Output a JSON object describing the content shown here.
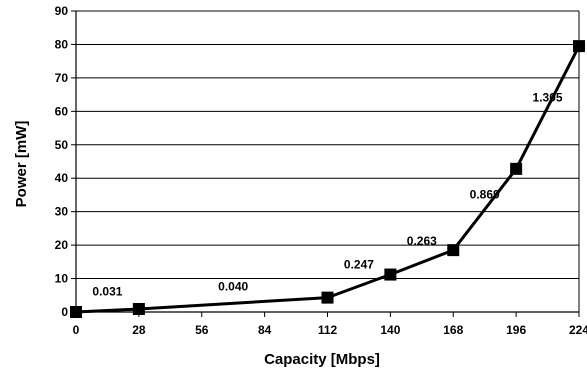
{
  "chart_data": {
    "type": "line",
    "xlabel": "Capacity [Mbps]",
    "ylabel": "Power [mW]",
    "xlim": [
      0,
      224
    ],
    "ylim": [
      0,
      90
    ],
    "x_ticks": [
      "0",
      "28",
      "56",
      "84",
      "112",
      "140",
      "168",
      "196",
      "224"
    ],
    "y_ticks": [
      "0",
      "10",
      "20",
      "30",
      "40",
      "50",
      "60",
      "70",
      "80",
      "90"
    ],
    "grid": "horizontal",
    "legend": "none",
    "series": [
      {
        "color": "#000000",
        "marker": "square",
        "x": [
          0,
          28,
          112,
          140,
          168,
          196,
          224
        ],
        "y": [
          0,
          0.9,
          4.3,
          11.2,
          18.5,
          42.8,
          79.5
        ]
      }
    ],
    "annotations": [
      {
        "text": "0.031",
        "x": 14,
        "y": 5
      },
      {
        "text": "0.040",
        "x": 70,
        "y": 6.5
      },
      {
        "text": "0.247",
        "x": 126,
        "y": 13
      },
      {
        "text": "0.263",
        "x": 154,
        "y": 20
      },
      {
        "text": "0.869",
        "x": 182,
        "y": 34
      },
      {
        "text": "1.305",
        "x": 210,
        "y": 63
      }
    ]
  }
}
